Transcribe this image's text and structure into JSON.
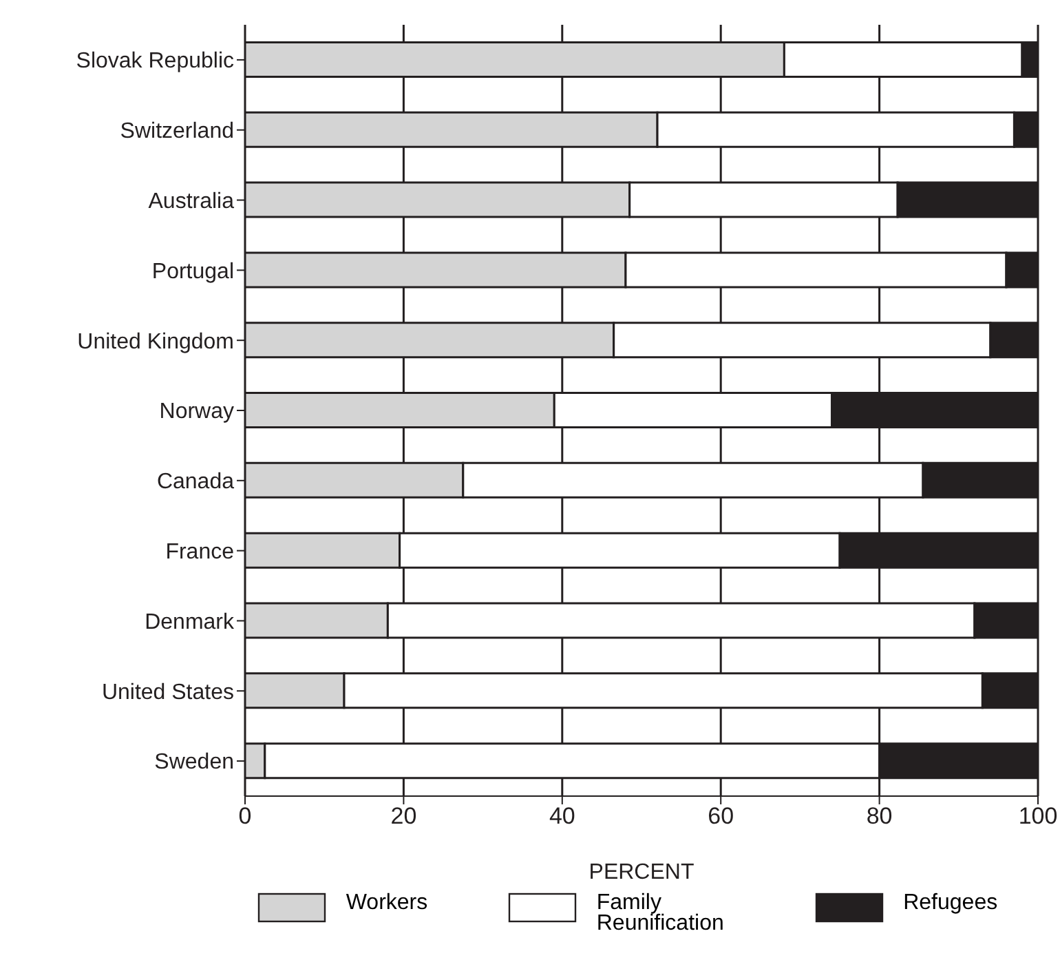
{
  "chart_data": {
    "type": "bar",
    "orientation": "horizontal",
    "stacked": true,
    "xlabel": "PERCENT",
    "categories": [
      "Slovak Republic",
      "Switzerland",
      "Australia",
      "Portugal",
      "United Kingdom",
      "Norway",
      "Canada",
      "France",
      "Denmark",
      "United States",
      "Sweden"
    ],
    "series": [
      {
        "name": "Workers",
        "color": "#d4d4d4",
        "values": [
          68,
          52,
          48.5,
          48,
          46.5,
          39,
          27.5,
          19.5,
          18,
          12.5,
          2.5
        ]
      },
      {
        "name": "Family Reunification",
        "color": "#ffffff",
        "values": [
          30,
          45,
          33.8,
          48,
          47.5,
          35,
          58,
          55.5,
          74,
          80.5,
          77.5
        ]
      },
      {
        "name": "Refugees",
        "color": "#231f20",
        "values": [
          2,
          3,
          17.7,
          4,
          6,
          26,
          14.5,
          25,
          8,
          7,
          20
        ]
      }
    ],
    "xlim": [
      0,
      100
    ],
    "xticks": [
      0,
      20,
      40,
      60,
      80,
      100
    ],
    "grid": "x",
    "legend": "bottom"
  }
}
